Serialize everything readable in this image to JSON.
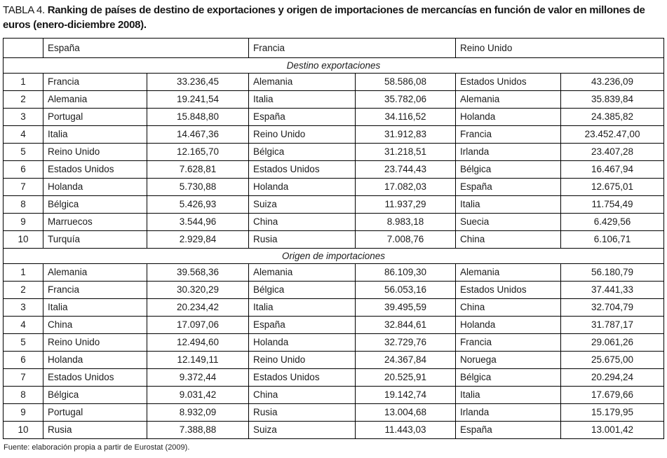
{
  "title": {
    "label": "TABLA 4.",
    "text": "Ranking de países de destino de exportaciones y origen de importaciones de mercancías en función de valor en millones de euros (enero-diciembre 2008)."
  },
  "table": {
    "country_headers": [
      "España",
      "Francia",
      "Reino Unido"
    ],
    "sections": [
      {
        "title": "Destino exportaciones",
        "rows": [
          [
            "1",
            "Francia",
            "33.236,45",
            "Alemania",
            "58.586,08",
            "Estados Unidos",
            "43.236,09"
          ],
          [
            "2",
            "Alemania",
            "19.241,54",
            "Italia",
            "35.782,06",
            "Alemania",
            "35.839,84"
          ],
          [
            "3",
            "Portugal",
            "15.848,80",
            "España",
            "34.116,52",
            "Holanda",
            "24.385,82"
          ],
          [
            "4",
            "Italia",
            "14.467,36",
            "Reino Unido",
            "31.912,83",
            "Francia",
            "23.452.47,00"
          ],
          [
            "5",
            "Reino Unido",
            "12.165,70",
            "Bélgica",
            "31.218,51",
            "Irlanda",
            "23.407,28"
          ],
          [
            "6",
            "Estados Unidos",
            "7.628,81",
            "Estados Unidos",
            "23.744,43",
            "Bélgica",
            "16.467,94"
          ],
          [
            "7",
            "Holanda",
            "5.730,88",
            "Holanda",
            "17.082,03",
            "España",
            "12.675,01"
          ],
          [
            "8",
            "Bélgica",
            "5.426,93",
            "Suiza",
            "11.937,29",
            "Italia",
            "11.754,49"
          ],
          [
            "9",
            "Marruecos",
            "3.544,96",
            "China",
            "8.983,18",
            "Suecia",
            "6.429,56"
          ],
          [
            "10",
            "Turquía",
            "2.929,84",
            "Rusia",
            "7.008,76",
            "China",
            "6.106,71"
          ]
        ]
      },
      {
        "title": "Origen de importaciones",
        "rows": [
          [
            "1",
            "Alemania",
            "39.568,36",
            "Alemania",
            "86.109,30",
            "Alemania",
            "56.180,79"
          ],
          [
            "2",
            "Francia",
            "30.320,29",
            "Bélgica",
            "56.053,16",
            "Estados Unidos",
            "37.441,33"
          ],
          [
            "3",
            "Italia",
            "20.234,42",
            "Italia",
            "39.495,59",
            "China",
            "32.704,79"
          ],
          [
            "4",
            "China",
            "17.097,06",
            "España",
            "32.844,61",
            "Holanda",
            "31.787,17"
          ],
          [
            "5",
            "Reino Unido",
            "12.494,60",
            "Holanda",
            "32.729,76",
            "Francia",
            "29.061,26"
          ],
          [
            "6",
            "Holanda",
            "12.149,11",
            "Reino Unido",
            "24.367,84",
            "Noruega",
            "25.675,00"
          ],
          [
            "7",
            "Estados Unidos",
            "9.372,44",
            "Estados Unidos",
            "20.525,91",
            "Bélgica",
            "20.294,24"
          ],
          [
            "8",
            "Bélgica",
            "9.031,42",
            "China",
            "19.142,74",
            "Italia",
            "17.679,66"
          ],
          [
            "9",
            "Portugal",
            "8.932,09",
            "Rusia",
            "13.004,68",
            "Irlanda",
            "15.179,95"
          ],
          [
            "10",
            "Rusia",
            "7.388,88",
            "Suiza",
            "11.443,03",
            "España",
            "13.001,42"
          ]
        ]
      }
    ]
  },
  "footer": "Fuente: elaboración propia a partir de Eurostat (2009)."
}
